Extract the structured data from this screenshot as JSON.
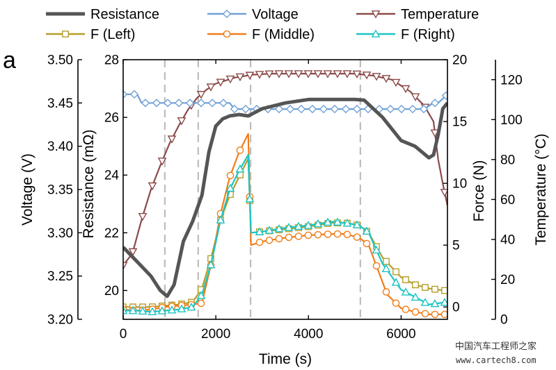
{
  "chart_data": {
    "type": "line",
    "panel_label": "a",
    "xlabel": "Time (s)",
    "xlim": [
      0,
      7000
    ],
    "xticks": [
      "0",
      "2000",
      "4000",
      "6000"
    ],
    "vlines": [
      900,
      1620,
      2750,
      5120
    ],
    "axes": {
      "voltage": {
        "label": "Voltage (V)",
        "lim": [
          3.2,
          3.5
        ],
        "ticks": [
          "3.20",
          "3.25",
          "3.30",
          "3.35",
          "3.40",
          "3.45",
          "3.50"
        ]
      },
      "resistance": {
        "label": "Resistance (mΩ)",
        "lim": [
          19.0,
          28.0
        ],
        "ticks": [
          "20",
          "22",
          "24",
          "26",
          "28"
        ]
      },
      "force": {
        "label": "Force (N)",
        "lim": [
          -1.0,
          20.0
        ],
        "ticks": [
          "0",
          "5",
          "10",
          "15",
          "20"
        ]
      },
      "temperature": {
        "label": "Temperature (°C)",
        "lim": [
          0,
          130
        ],
        "ticks": [
          "0",
          "20",
          "40",
          "60",
          "80",
          "100",
          "120"
        ]
      }
    },
    "series": [
      {
        "name": "Resistance",
        "axis": "resistance",
        "color": "#555555",
        "marker": "none",
        "x": [
          0,
          300,
          600,
          800,
          950,
          1100,
          1300,
          1500,
          1700,
          1850,
          2000,
          2150,
          2300,
          2500,
          2700,
          3000,
          3500,
          4000,
          4500,
          5000,
          5200,
          5600,
          6000,
          6300,
          6600,
          6700,
          6800,
          6900,
          7000
        ],
        "y": [
          21.5,
          21.0,
          20.5,
          20.0,
          19.8,
          20.2,
          21.7,
          22.4,
          23.3,
          24.8,
          25.7,
          25.95,
          26.05,
          26.1,
          26.05,
          26.3,
          26.5,
          26.62,
          26.62,
          26.62,
          26.6,
          26.0,
          25.2,
          25.0,
          24.6,
          24.7,
          25.4,
          26.3,
          26.5
        ]
      },
      {
        "name": "Voltage",
        "axis": "voltage",
        "color": "#6fa0d8",
        "marker": "diamond",
        "x": [
          0,
          150,
          300,
          400,
          1500,
          2000,
          2300,
          2400,
          2750,
          3200,
          4000,
          5000,
          5500,
          6000,
          6300,
          6500,
          6700,
          6800,
          6900,
          7000
        ],
        "y": [
          3.46,
          3.46,
          3.46,
          3.45,
          3.45,
          3.45,
          3.45,
          3.443,
          3.443,
          3.443,
          3.443,
          3.443,
          3.443,
          3.443,
          3.443,
          3.443,
          3.45,
          3.45,
          3.455,
          3.46
        ]
      },
      {
        "name": "Temperature",
        "axis": "temperature",
        "color": "#8b4a4a",
        "marker": "triangle-down",
        "x": [
          0,
          200,
          400,
          600,
          800,
          1000,
          1200,
          1400,
          1600,
          1800,
          2000,
          2400,
          2800,
          3200,
          3600,
          4000,
          4500,
          5000,
          5400,
          5800,
          6200,
          6500,
          6700,
          6800,
          6900,
          7000
        ],
        "y": [
          27,
          33,
          50,
          65,
          77,
          88,
          97,
          105,
          111,
          115,
          118,
          121,
          122.5,
          123,
          123,
          123,
          123,
          123,
          122,
          120,
          114,
          107,
          99,
          80,
          68,
          57
        ]
      },
      {
        "name": "F (Left)",
        "axis": "force",
        "color": "#b49e28",
        "marker": "square",
        "x": [
          0,
          300,
          600,
          900,
          1200,
          1500,
          1700,
          1900,
          2100,
          2300,
          2500,
          2700,
          2760,
          3000,
          3500,
          4000,
          4500,
          4800,
          5100,
          5300,
          5600,
          6000,
          6300,
          6600,
          7000
        ],
        "y": [
          0,
          0,
          0,
          0.1,
          0.2,
          0.4,
          1.5,
          4.0,
          7.0,
          9.0,
          10.5,
          12.0,
          6.0,
          6.1,
          6.3,
          6.5,
          6.8,
          6.8,
          6.6,
          6.0,
          4.0,
          2.4,
          1.8,
          1.5,
          1.3
        ]
      },
      {
        "name": "F (Middle)",
        "axis": "force",
        "color": "#f07d1a",
        "marker": "circle",
        "x": [
          0,
          300,
          600,
          900,
          1200,
          1500,
          1700,
          1900,
          2100,
          2300,
          2500,
          2700,
          2760,
          3000,
          3500,
          4000,
          4500,
          4800,
          5100,
          5300,
          5500,
          5700,
          6000,
          6300,
          6600,
          7000
        ],
        "y": [
          -0.2,
          -0.3,
          -0.2,
          0,
          0.1,
          0.2,
          0.3,
          3.5,
          7.5,
          10.5,
          12.5,
          14.0,
          5.0,
          5.3,
          5.6,
          5.8,
          5.9,
          5.9,
          5.6,
          5.0,
          3.0,
          1.0,
          -0.1,
          -0.4,
          -0.6,
          -0.6
        ]
      },
      {
        "name": "F (Right)",
        "axis": "force",
        "color": "#1cc4c4",
        "marker": "triangle-up",
        "x": [
          0,
          300,
          600,
          900,
          1200,
          1500,
          1700,
          1900,
          2100,
          2300,
          2500,
          2700,
          2760,
          3000,
          3500,
          4000,
          4500,
          4800,
          5100,
          5300,
          5600,
          6000,
          6300,
          6600,
          7000
        ],
        "y": [
          -0.3,
          -0.3,
          -0.4,
          -0.3,
          -0.2,
          0,
          1.0,
          3.5,
          7.0,
          9.5,
          11.0,
          12.3,
          6.0,
          6.1,
          6.4,
          6.6,
          6.9,
          6.8,
          6.6,
          6.0,
          3.5,
          1.4,
          0.8,
          0.2,
          0.4
        ]
      }
    ]
  },
  "watermark": {
    "line1": "中国汽车工程师之家",
    "line2": "www.cartech8.com"
  }
}
